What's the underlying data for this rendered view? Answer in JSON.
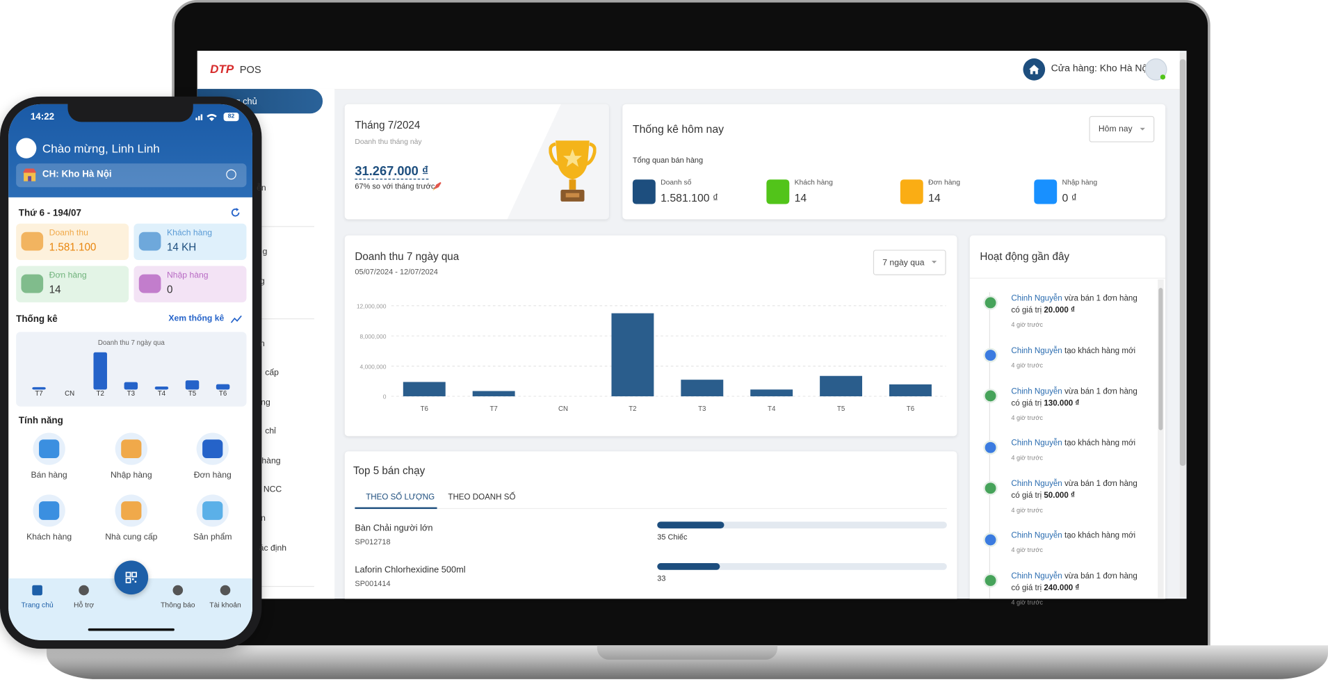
{
  "phone": {
    "time": "14:22",
    "battery": "82",
    "greeting": "Chào mừng, Linh Linh",
    "store": "CH: Kho Hà Nội",
    "date": "Thứ 6 - 194/07",
    "tiles": [
      {
        "label": "Doanh thu",
        "value": "1.581.100"
      },
      {
        "label": "Khách hàng",
        "value": "14 KH"
      },
      {
        "label": "Đơn hàng",
        "value": "14"
      },
      {
        "label": "Nhập hàng",
        "value": "0"
      }
    ],
    "stats_title": "Thống kê",
    "stats_link": "Xem thống kê",
    "features_title": "Tính năng",
    "features": [
      "Bán hàng",
      "Nhập hàng",
      "Đơn hàng",
      "Khách hàng",
      "Nhà cung cấp",
      "Sản phẩm"
    ],
    "nav": [
      "Trang chủ",
      "Hỗ trợ",
      "Thông báo",
      "Tài khoản"
    ]
  },
  "desktop": {
    "logo": "DTP",
    "app": "POS",
    "store": "Cửa hàng: Kho Hà Nội",
    "active_menu": "ng chủ",
    "menu": [
      "ễn",
      "g",
      "g",
      "n",
      "cấp",
      "ng",
      "chỉ",
      "hàng",
      "NCC",
      "n",
      "ác định"
    ],
    "month_card": {
      "title": "Tháng 7/2024",
      "subtitle": "Doanh thu tháng này",
      "value": "31.267.000 ₫",
      "compare": "67% so với tháng trước"
    },
    "today": {
      "title": "Thống kê hôm nay",
      "filter": "Hôm nay",
      "subtitle": "Tổng quan bán hàng",
      "stats": [
        {
          "label": "Doanh số",
          "value": "1.581.100 ₫"
        },
        {
          "label": "Khách hàng",
          "value": "14"
        },
        {
          "label": "Đơn hàng",
          "value": "14"
        },
        {
          "label": "Nhập hàng",
          "value": "0 ₫"
        }
      ]
    },
    "activity": {
      "title": "Hoạt động gần đây",
      "items": [
        {
          "user": "Chinh Nguyễn",
          "action": "vừa bán 1 đơn hàng có giá trị",
          "amount": "20.000 ₫",
          "time": "4 giờ trước"
        },
        {
          "user": "Chinh Nguyễn",
          "action": "tạo khách hàng mới",
          "time": "4 giờ trước"
        },
        {
          "user": "Chinh Nguyễn",
          "action": "vừa bán 1 đơn hàng có giá trị",
          "amount": "130.000 ₫",
          "time": "4 giờ trước"
        },
        {
          "user": "Chinh Nguyễn",
          "action": "tạo khách hàng mới",
          "time": "4 giờ trước"
        },
        {
          "user": "Chinh Nguyễn",
          "action": "vừa bán 1 đơn hàng có giá trị",
          "amount": "50.000 ₫",
          "time": "4 giờ trước"
        },
        {
          "user": "Chinh Nguyễn",
          "action": "tạo khách hàng mới",
          "time": "4 giờ trước"
        },
        {
          "user": "Chinh Nguyễn",
          "action": "vừa bán 1 đơn hàng có giá trị",
          "amount": "240.000 ₫",
          "time": "4 giờ trước"
        }
      ]
    },
    "top5_tabs": [
      "THEO SỐ LƯỢNG",
      "THEO DOANH SỐ"
    ]
  },
  "chart_data": [
    {
      "type": "bar",
      "title": "Doanh thu 7 ngày qua",
      "subtitle": "05/07/2024 - 12/07/2024",
      "filter": "7 ngày qua",
      "categories": [
        "T6",
        "T7",
        "CN",
        "T2",
        "T3",
        "T4",
        "T5",
        "T6"
      ],
      "values": [
        1900000,
        700000,
        0,
        11000000,
        2200000,
        900000,
        2700000,
        1581100
      ],
      "color": "#2a5d8c",
      "ylim": [
        0,
        12000000
      ],
      "yticks": [
        0,
        {
          "value": 4000000,
          "label": "4,000,000"
        },
        {
          "value": 8000000,
          "label": "8,000,000"
        },
        {
          "value": 12000000,
          "label": "12,000,000"
        }
      ],
      "grid": true
    },
    {
      "type": "bar",
      "title": "Doanh thu 7 ngày qua",
      "categories": [
        "T7",
        "CN",
        "T2",
        "T3",
        "T4",
        "T5",
        "T6"
      ],
      "values": [
        700000,
        0,
        11000000,
        2200000,
        900000,
        2700000,
        1581100
      ],
      "color": "#2563c9",
      "ylim": [
        0,
        11000000
      ],
      "grid": false
    },
    {
      "type": "bar",
      "horizontal": true,
      "title": "Top 5 bán chạy",
      "categories": [
        "Bàn Chải người lớn",
        "Laforin Chlorhexidine 500ml"
      ],
      "codes": [
        "SP012718",
        "SP001414"
      ],
      "values": [
        35,
        33
      ],
      "value_labels": [
        "35 Chiếc",
        "33"
      ],
      "color": "#1d4e7e",
      "xlim": [
        0,
        152
      ]
    }
  ]
}
